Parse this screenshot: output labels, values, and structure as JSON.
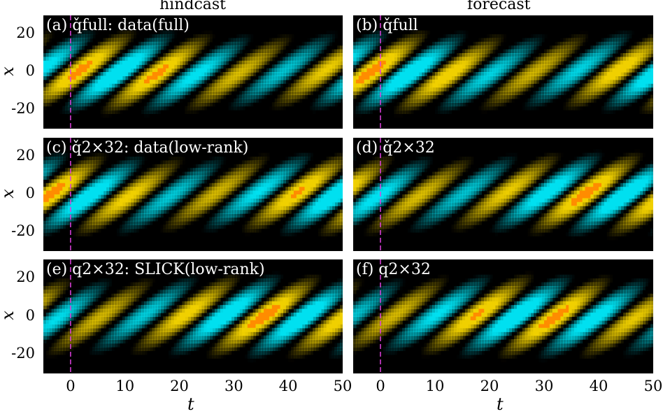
{
  "columns": {
    "left": "hindcast",
    "right": "forecast"
  },
  "axes": {
    "xlabel": "t",
    "ylabel": "x"
  },
  "chart_data": {
    "type": "heatmap",
    "panels": [
      {
        "id": "a",
        "label": "(a) q̌full: data(full)"
      },
      {
        "id": "b",
        "label": "(b) q̌full"
      },
      {
        "id": "c",
        "label": "(c) q̌2×32: data(low-rank)"
      },
      {
        "id": "d",
        "label": "(d) q̌2×32"
      },
      {
        "id": "e",
        "label": "(e) q2×32: SLICK(low-rank)"
      },
      {
        "id": "f",
        "label": "(f) q2×32"
      }
    ],
    "xlim": [
      -5,
      50
    ],
    "ylim": [
      -30,
      30
    ],
    "xticks": [
      0,
      10,
      20,
      30,
      40,
      50
    ],
    "yticks": [
      20,
      0,
      -20
    ],
    "marker_t": 0,
    "colormap": {
      "negative": "#00e0f0",
      "zero": "#000000",
      "positive": "#f0d000",
      "peak": "#ff8c00"
    },
    "marker_color": "#e040e0"
  }
}
